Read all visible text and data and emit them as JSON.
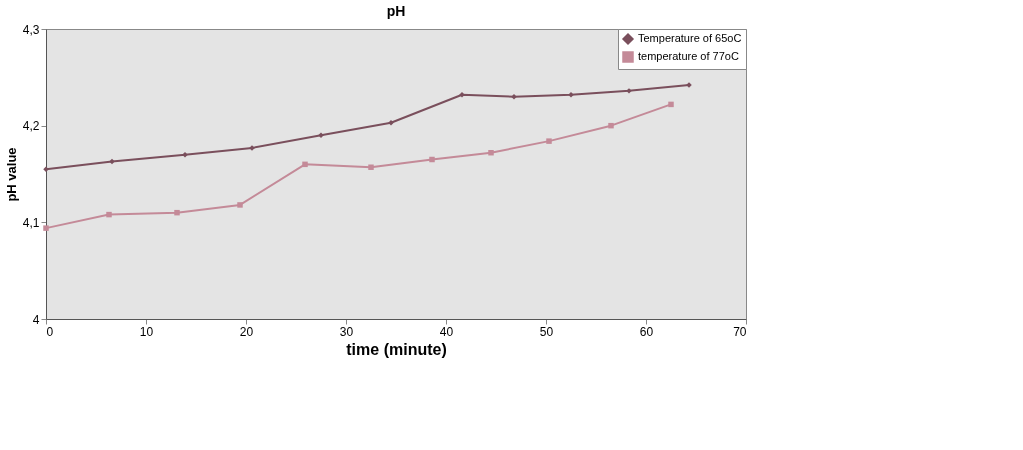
{
  "chart_data": {
    "type": "line",
    "title": "pH",
    "xlabel": "time (minute)",
    "ylabel": "pH value",
    "xlim": [
      0,
      70
    ],
    "xticks": [
      0,
      10,
      20,
      30,
      40,
      50,
      60,
      70
    ],
    "ylim": [
      4,
      4.3
    ],
    "yticks": [
      4,
      {
        "value": 4.1,
        "label": "4,1"
      },
      {
        "value": 4.2,
        "label": "4,2"
      },
      {
        "value": 4.3,
        "label": "4,3"
      }
    ],
    "grid": false,
    "legend": "top right",
    "series": [
      {
        "name": "Temperature of 65oC",
        "color": "#7a4f5c",
        "marker": "diamond",
        "x": [
          0,
          6.6,
          13.9,
          20.6,
          27.5,
          34.5,
          41.6,
          46.8,
          52.5,
          58.3,
          64.3
        ],
        "values": [
          4.155,
          4.163,
          4.17,
          4.177,
          4.19,
          4.203,
          4.232,
          4.23,
          4.232,
          4.236,
          4.242
        ]
      },
      {
        "name": "temperature of 77oC",
        "color": "#c48a98",
        "marker": "square",
        "x": [
          0,
          6.3,
          13.1,
          19.4,
          25.9,
          32.5,
          38.6,
          44.5,
          50.3,
          56.5,
          62.5
        ],
        "values": [
          4.094,
          4.108,
          4.11,
          4.118,
          4.16,
          4.157,
          4.165,
          4.172,
          4.184,
          4.2,
          4.222
        ]
      }
    ]
  }
}
